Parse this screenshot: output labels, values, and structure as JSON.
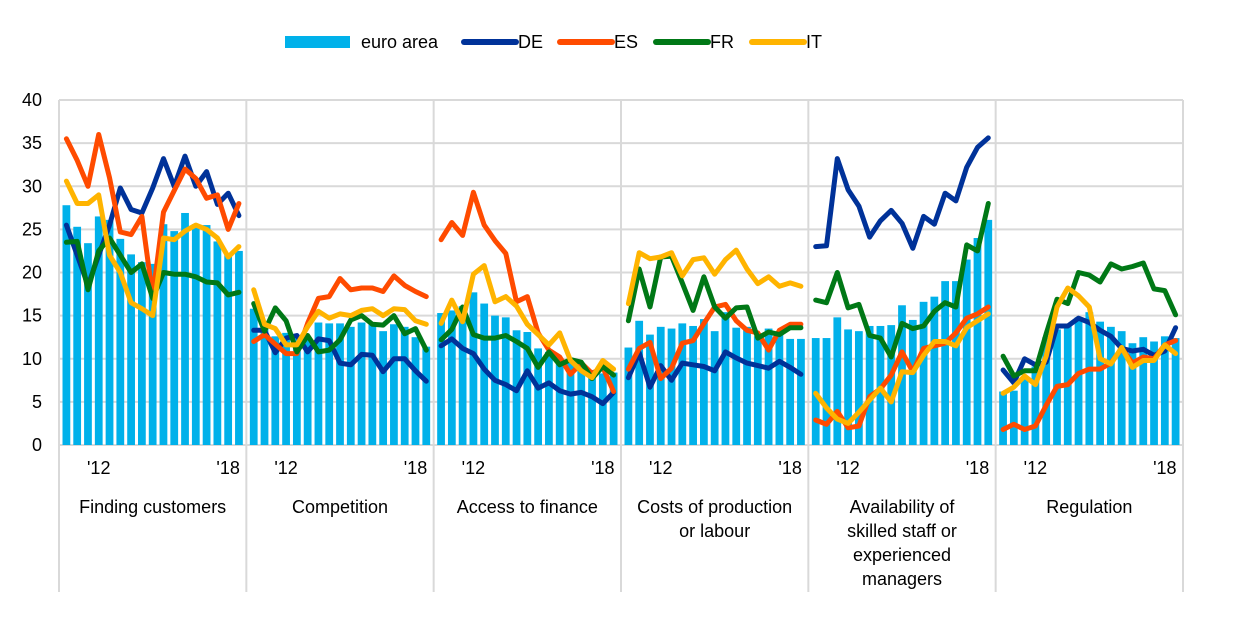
{
  "chart_data": {
    "type": "bar+line",
    "title": "",
    "xlabel": "",
    "ylabel": "",
    "ylim": [
      0,
      40
    ],
    "yticks": [
      0,
      5,
      10,
      15,
      20,
      25,
      30,
      35,
      40
    ],
    "grid": true,
    "legend_position": "top-center",
    "legend": [
      {
        "name": "euro area",
        "kind": "bar",
        "color": "#00B1EA"
      },
      {
        "name": "DE",
        "kind": "line",
        "color": "#003299"
      },
      {
        "name": "ES",
        "kind": "line",
        "color": "#FF4B00"
      },
      {
        "name": "FR",
        "kind": "line",
        "color": "#007816"
      },
      {
        "name": "IT",
        "kind": "line",
        "color": "#FFB400"
      }
    ],
    "x_tick_labels": [
      "'12",
      "'18"
    ],
    "x_tick_positions": [
      3,
      15
    ],
    "panels": [
      {
        "category": "Finding customers",
        "euro area": [
          27.8,
          25.3,
          23.4,
          26.5,
          26.1,
          23.9,
          22.1,
          21.2,
          21.0,
          25.6,
          24.8,
          26.9,
          25.6,
          25.5,
          23.6,
          22.1,
          22.5
        ],
        "DE": [
          25.5,
          22.0,
          18.5,
          22.0,
          25.5,
          29.8,
          27.3,
          26.9,
          29.8,
          33.2,
          30.0,
          33.5,
          30.0,
          31.7,
          27.9,
          29.2,
          26.6
        ],
        "ES": [
          35.5,
          33.0,
          30.0,
          36.0,
          31.0,
          24.7,
          24.4,
          26.5,
          17.2,
          27.0,
          29.5,
          32.0,
          30.9,
          28.6,
          29.0,
          25.0,
          28.0
        ],
        "FR": [
          23.5,
          23.6,
          18.0,
          22.5,
          24.0,
          22.0,
          20.0,
          21.0,
          17.0,
          20.0,
          19.8,
          19.8,
          19.5,
          18.9,
          18.8,
          17.4,
          17.7
        ],
        "IT": [
          30.6,
          28.0,
          28.0,
          29.0,
          22.0,
          20.0,
          16.5,
          15.8,
          15.0,
          24.0,
          23.8,
          24.8,
          25.5,
          25.0,
          24.0,
          21.8,
          23.0
        ]
      },
      {
        "category": "Competition",
        "euro area": [
          15.8,
          14.0,
          12.6,
          13.0,
          12.6,
          12.5,
          14.2,
          14.1,
          14.1,
          13.7,
          14.2,
          14.0,
          13.2,
          14.0,
          13.7,
          12.5,
          11.4
        ],
        "DE": [
          13.3,
          13.3,
          10.7,
          12.4,
          12.7,
          10.8,
          12.3,
          12.1,
          9.5,
          9.3,
          10.5,
          10.4,
          8.5,
          10.0,
          10.0,
          8.6,
          7.4
        ],
        "ES": [
          12.0,
          12.8,
          11.7,
          10.6,
          10.6,
          14.1,
          17.0,
          17.2,
          19.3,
          18.0,
          18.2,
          18.2,
          17.8,
          19.6,
          18.5,
          17.8,
          17.2
        ],
        "FR": [
          16.4,
          13.2,
          15.9,
          14.4,
          10.8,
          12.7,
          10.8,
          11.0,
          12.2,
          14.5,
          15.0,
          14.0,
          13.9,
          15.0,
          12.9,
          13.5,
          11.0
        ],
        "IT": [
          18.0,
          14.0,
          13.5,
          11.6,
          11.6,
          13.7,
          15.5,
          14.7,
          15.2,
          15.0,
          15.6,
          15.8,
          15.0,
          15.8,
          15.7,
          14.4,
          14.0
        ]
      },
      {
        "category": "Access to finance",
        "euro area": [
          15.3,
          15.6,
          16.1,
          17.7,
          16.4,
          15.0,
          14.8,
          13.3,
          13.1,
          11.2,
          10.8,
          10.0,
          9.8,
          9.2,
          8.7,
          8.3,
          8.4
        ],
        "DE": [
          11.5,
          12.3,
          11.2,
          10.6,
          8.8,
          7.5,
          7.0,
          6.3,
          8.6,
          6.6,
          7.2,
          6.3,
          5.9,
          6.1,
          5.6,
          4.8,
          6.1
        ],
        "ES": [
          23.8,
          25.8,
          24.3,
          29.3,
          25.5,
          23.7,
          22.2,
          16.6,
          17.2,
          13.0,
          11.0,
          10.2,
          8.2,
          9.5,
          8.3,
          9.0,
          6.2
        ],
        "FR": [
          12.2,
          13.4,
          16.0,
          12.8,
          12.4,
          12.4,
          12.7,
          12.0,
          11.2,
          9.0,
          10.8,
          9.3,
          9.9,
          9.6,
          7.7,
          9.1,
          8.1
        ],
        "IT": [
          14.1,
          16.8,
          14.3,
          19.8,
          20.8,
          16.6,
          17.2,
          16.1,
          14.0,
          12.8,
          11.6,
          13.0,
          9.8,
          8.6,
          7.8,
          9.8,
          8.8
        ]
      },
      {
        "category": "Costs of production or labour",
        "euro area": [
          11.3,
          14.4,
          12.8,
          13.7,
          13.5,
          14.1,
          13.8,
          14.6,
          13.2,
          15.4,
          13.6,
          13.7,
          12.6,
          13.5,
          13.0,
          12.3,
          12.3
        ],
        "DE": [
          7.8,
          10.7,
          6.7,
          9.2,
          7.5,
          9.5,
          9.3,
          9.1,
          8.6,
          10.8,
          10.1,
          9.5,
          9.2,
          8.9,
          9.7,
          9.0,
          8.2
        ],
        "ES": [
          8.8,
          11.2,
          11.9,
          7.7,
          8.9,
          11.8,
          12.1,
          14.1,
          16.0,
          16.3,
          14.4,
          13.3,
          13.0,
          11.0,
          13.3,
          14.0,
          14.0
        ],
        "FR": [
          14.4,
          20.4,
          16.0,
          21.8,
          21.9,
          18.8,
          15.6,
          19.5,
          16.0,
          14.7,
          15.9,
          16.0,
          12.4,
          13.1,
          12.8,
          13.6,
          13.6
        ],
        "IT": [
          16.4,
          22.3,
          21.6,
          21.8,
          22.3,
          19.6,
          21.5,
          21.7,
          19.8,
          21.5,
          22.6,
          20.4,
          18.7,
          19.5,
          18.4,
          18.8,
          18.4
        ]
      },
      {
        "category": "Availability of skilled staff or experienced managers",
        "euro area": [
          12.4,
          12.4,
          14.8,
          13.4,
          13.2,
          13.8,
          13.8,
          13.9,
          16.2,
          14.5,
          16.6,
          17.2,
          19.0,
          19.0,
          21.5,
          24.0,
          26.1
        ],
        "DE": [
          23.0,
          23.1,
          33.2,
          29.6,
          27.7,
          24.1,
          26.0,
          27.2,
          25.7,
          22.8,
          26.5,
          25.6,
          29.2,
          28.3,
          32.2,
          34.5,
          35.6
        ],
        "ES": [
          2.9,
          2.4,
          3.9,
          2.0,
          2.2,
          5.6,
          6.5,
          8.1,
          10.8,
          8.5,
          11.2,
          11.5,
          11.8,
          13.0,
          14.7,
          15.2,
          16.0
        ],
        "FR": [
          16.8,
          16.5,
          20.0,
          15.9,
          16.3,
          12.7,
          12.4,
          10.2,
          14.1,
          13.5,
          13.8,
          15.5,
          16.5,
          16.0,
          23.2,
          22.5,
          28.0
        ],
        "IT": [
          6.0,
          4.3,
          3.0,
          2.5,
          3.8,
          5.2,
          6.6,
          5.0,
          8.5,
          8.4,
          10.4,
          12.0,
          12.0,
          11.5,
          13.6,
          14.4,
          15.2
        ]
      },
      {
        "category": "Regulation",
        "euro area": [
          6.2,
          6.3,
          7.7,
          9.1,
          12.5,
          13.4,
          13.9,
          14.8,
          15.4,
          14.3,
          13.7,
          13.2,
          11.8,
          12.5,
          12.0,
          12.6,
          12.4
        ],
        "DE": [
          8.7,
          7.2,
          10.0,
          9.3,
          9.6,
          13.8,
          13.8,
          14.7,
          14.2,
          13.3,
          12.6,
          11.2,
          10.9,
          11.1,
          10.4,
          10.9,
          13.6
        ],
        "ES": [
          1.8,
          2.4,
          1.8,
          2.2,
          4.6,
          6.8,
          7.0,
          8.3,
          8.8,
          8.8,
          9.5,
          11.2,
          9.5,
          10.2,
          10.0,
          11.6,
          12.1
        ],
        "FR": [
          10.3,
          8.0,
          8.6,
          8.6,
          12.9,
          16.9,
          16.4,
          20.0,
          19.7,
          18.9,
          21.0,
          20.4,
          20.7,
          21.1,
          18.1,
          17.9,
          15.1
        ],
        "IT": [
          6.0,
          6.7,
          8.0,
          7.0,
          10.3,
          16.0,
          18.2,
          17.3,
          16.0,
          10.0,
          9.4,
          11.3,
          9.0,
          9.8,
          9.8,
          11.6,
          10.6
        ]
      }
    ]
  }
}
